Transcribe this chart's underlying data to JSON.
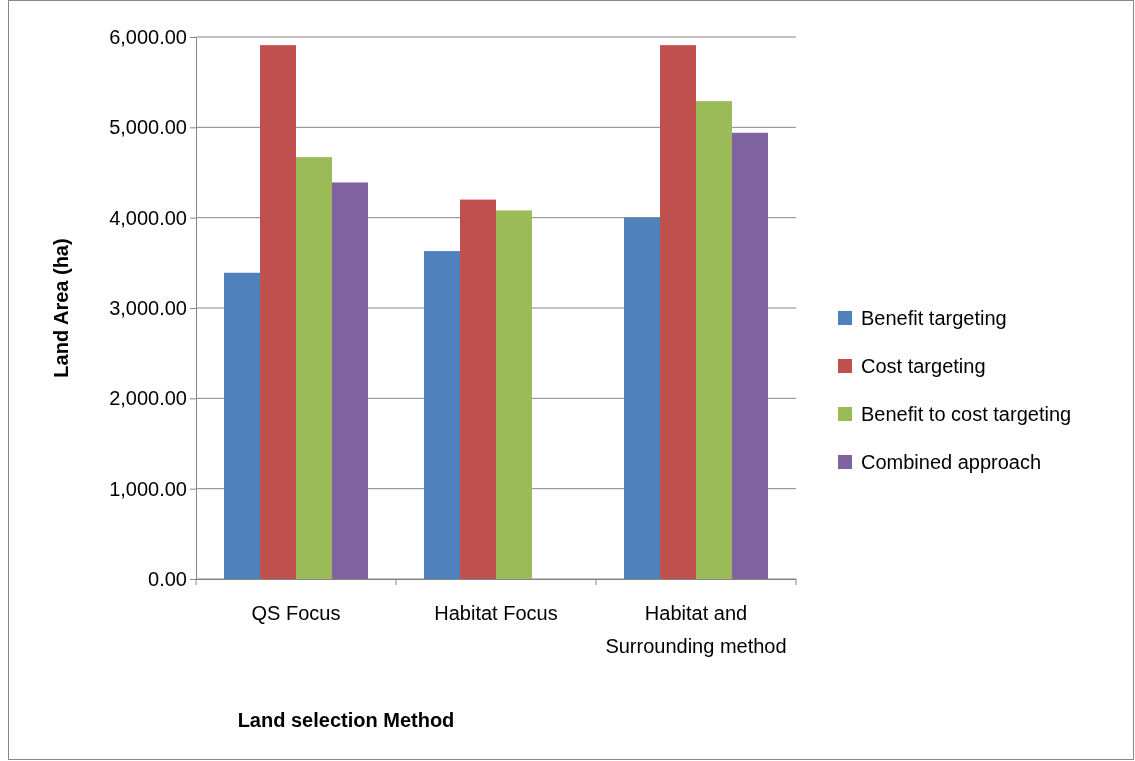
{
  "chart_data": {
    "type": "bar",
    "xlabel": "Land selection Method",
    "ylabel": "Land Area (ha)",
    "categories": [
      "QS Focus",
      "Habitat Focus",
      "Habitat and Surrounding method"
    ],
    "series": [
      {
        "name": "Benefit targeting",
        "color": "#4f81bd",
        "values": [
          3390,
          3630,
          4000
        ]
      },
      {
        "name": "Cost targeting",
        "color": "#c0504d",
        "values": [
          5910,
          4200,
          5910
        ]
      },
      {
        "name": "Benefit to cost targeting",
        "color": "#9bbb59",
        "values": [
          4670,
          4080,
          5290
        ]
      },
      {
        "name": "Combined approach",
        "color": "#8064a2",
        "values": [
          4390,
          null,
          4940
        ]
      }
    ],
    "ylim": [
      0,
      6000
    ],
    "yticks": [
      {
        "value": 0,
        "label": "0.00"
      },
      {
        "value": 1000,
        "label": "1,000.00"
      },
      {
        "value": 2000,
        "label": "2,000.00"
      },
      {
        "value": 3000,
        "label": "3,000.00"
      },
      {
        "value": 4000,
        "label": "4,000.00"
      },
      {
        "value": 5000,
        "label": "5,000.00"
      },
      {
        "value": 6000,
        "label": "6,000.00"
      }
    ],
    "grid": "y",
    "legend": "right"
  }
}
